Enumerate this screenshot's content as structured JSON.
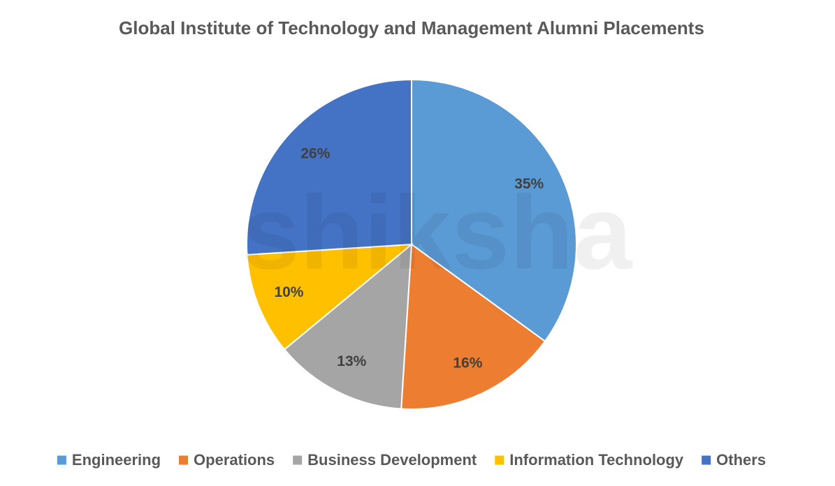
{
  "chart_data": {
    "type": "pie",
    "title": "Global Institute of Technology and Management Alumni Placements",
    "categories": [
      "Engineering",
      "Operations",
      "Business Development",
      "Information Technology",
      "Others"
    ],
    "values": [
      35,
      16,
      13,
      10,
      26
    ],
    "value_labels": [
      "35%",
      "16%",
      "13%",
      "10%",
      "26%"
    ],
    "colors": [
      "#5b9bd5",
      "#ed7d31",
      "#a5a5a5",
      "#ffc000",
      "#4472c4"
    ],
    "legend": "bottom",
    "watermark": "shiksha"
  }
}
